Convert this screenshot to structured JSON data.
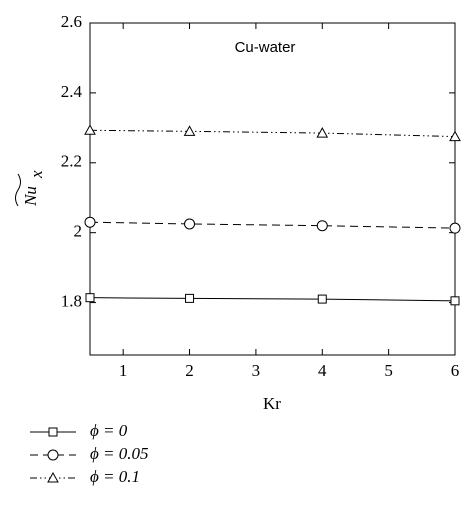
{
  "chart_data": {
    "type": "line",
    "annotation": "Cu-water",
    "xlabel": "Kr",
    "ylabel": "Nu",
    "ylabel_sub": "x",
    "xlim": [
      0.5,
      6
    ],
    "xticks": [
      1,
      2,
      3,
      4,
      5,
      6
    ],
    "ylim": [
      1.65,
      2.6
    ],
    "yticks": [
      {
        "value": 1.8,
        "label": "1.8"
      },
      {
        "value": 2,
        "label": "2"
      },
      {
        "value": 2.2,
        "label": "2.2"
      },
      {
        "value": 2.4,
        "label": "2.4"
      },
      {
        "value": 2.6,
        "label": "2.6"
      }
    ],
    "x": [
      0.5,
      2,
      4,
      6
    ],
    "series": [
      {
        "name": "ϕ = 0",
        "color": "#000000",
        "linestyle": "solid",
        "marker": "square",
        "values": [
          1.814,
          1.812,
          1.81,
          1.805
        ]
      },
      {
        "name": "ϕ = 0.05",
        "color": "#000000",
        "linestyle": "dashed",
        "marker": "circle",
        "values": [
          2.03,
          2.025,
          2.02,
          2.013
        ]
      },
      {
        "name": "ϕ = 0.1",
        "color": "#000000",
        "linestyle": "dashdotdot",
        "marker": "triangle",
        "values": [
          2.293,
          2.29,
          2.285,
          2.275
        ]
      }
    ]
  }
}
